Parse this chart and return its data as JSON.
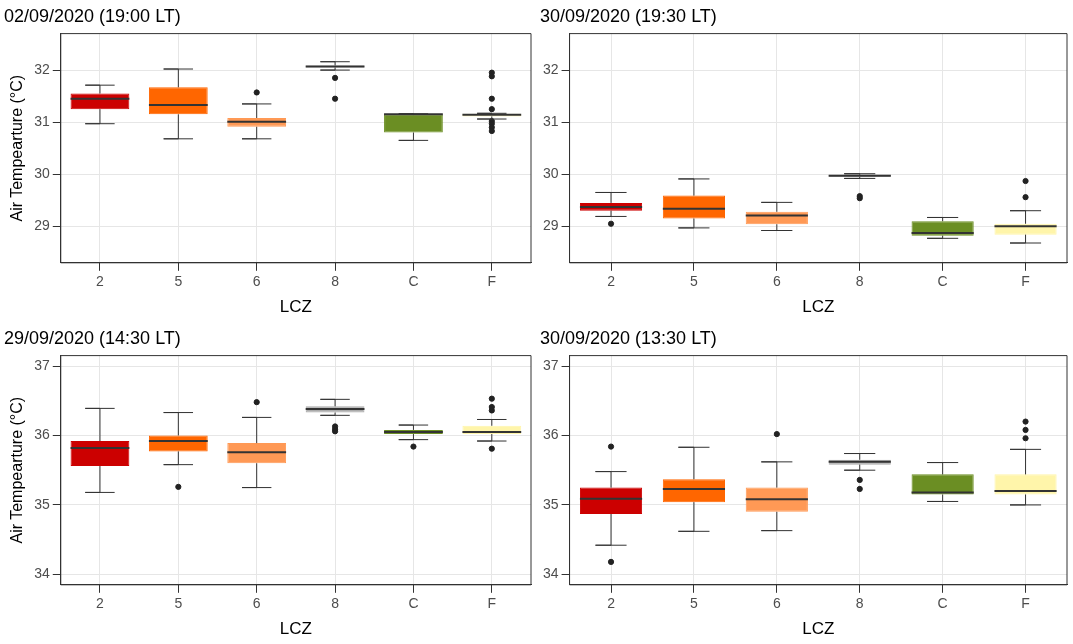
{
  "chart_data": [
    {
      "type": "box",
      "title": "02/09/2020 (19:00 LT)",
      "xlabel": "LCZ",
      "ylabel": "Air Tempearture (°C)",
      "categories": [
        "2",
        "5",
        "6",
        "8",
        "C",
        "F"
      ],
      "colors": [
        "#cc0000",
        "#ff6600",
        "#ff9955",
        "#aaaaaa",
        "#6b8e23",
        "#fff5aa"
      ],
      "ylim": [
        28.3,
        32.7
      ],
      "yticks": [
        29,
        30,
        31,
        32
      ],
      "grid": true,
      "boxes": [
        {
          "low": 30.97,
          "q1": 31.25,
          "median": 31.45,
          "q3": 31.55,
          "high": 31.71
        },
        {
          "low": 30.68,
          "q1": 31.15,
          "median": 31.33,
          "q3": 31.67,
          "high": 32.02
        },
        {
          "low": 30.68,
          "q1": 30.91,
          "median": 31.01,
          "q3": 31.08,
          "high": 31.35,
          "outliers": [
            31.57
          ]
        },
        {
          "low": 32.0,
          "q1": 32.05,
          "median": 32.07,
          "q3": 32.09,
          "high": 32.16,
          "outliers": [
            31.85,
            31.45
          ]
        },
        {
          "low": 30.65,
          "q1": 30.8,
          "median": 31.15,
          "q3": 31.15,
          "high": 31.16
        },
        {
          "low": 31.06,
          "q1": 31.11,
          "median": 31.14,
          "q3": 31.16,
          "high": 31.17,
          "outliers": [
            31.95,
            31.88,
            31.45,
            31.25,
            31.02,
            30.97,
            30.9,
            30.83
          ]
        }
      ]
    },
    {
      "type": "box",
      "title": "30/09/2020 (19:30 LT)",
      "xlabel": "LCZ",
      "categories": [
        "2",
        "5",
        "6",
        "8",
        "C",
        "F"
      ],
      "colors": [
        "#cc0000",
        "#ff6600",
        "#ff9955",
        "#aaaaaa",
        "#6b8e23",
        "#fff5aa"
      ],
      "ylim": [
        28.3,
        32.7
      ],
      "yticks": [
        29,
        30,
        31,
        32
      ],
      "grid": true,
      "boxes": [
        {
          "low": 29.19,
          "q1": 29.3,
          "median": 29.37,
          "q3": 29.45,
          "high": 29.65,
          "outliers": [
            29.05
          ]
        },
        {
          "low": 28.97,
          "q1": 29.15,
          "median": 29.34,
          "q3": 29.59,
          "high": 29.91
        },
        {
          "low": 28.92,
          "q1": 29.04,
          "median": 29.21,
          "q3": 29.28,
          "high": 29.46
        },
        {
          "low": 29.92,
          "q1": 29.95,
          "median": 29.97,
          "q3": 29.99,
          "high": 30.01,
          "outliers": [
            29.58,
            29.54
          ]
        },
        {
          "low": 28.77,
          "q1": 28.82,
          "median": 28.87,
          "q3": 29.1,
          "high": 29.17
        },
        {
          "low": 28.68,
          "q1": 28.84,
          "median": 29.0,
          "q3": 29.05,
          "high": 29.3,
          "outliers": [
            29.87,
            29.56
          ]
        }
      ]
    },
    {
      "type": "box",
      "title": "29/09/2020 (14:30 LT)",
      "xlabel": "LCZ",
      "ylabel": "Air Tempearture (°C)",
      "categories": [
        "2",
        "5",
        "6",
        "8",
        "C",
        "F"
      ],
      "colors": [
        "#cc0000",
        "#ff6600",
        "#ff9955",
        "#aaaaaa",
        "#6b8e23",
        "#fff5aa"
      ],
      "ylim": [
        33.85,
        37.15
      ],
      "yticks": [
        34,
        35,
        36,
        37
      ],
      "grid": true,
      "boxes": [
        {
          "low": 35.18,
          "q1": 35.56,
          "median": 35.82,
          "q3": 35.92,
          "high": 36.39
        },
        {
          "low": 35.58,
          "q1": 35.77,
          "median": 35.92,
          "q3": 36.0,
          "high": 36.33,
          "outliers": [
            35.26
          ]
        },
        {
          "low": 35.25,
          "q1": 35.6,
          "median": 35.76,
          "q3": 35.89,
          "high": 36.26,
          "outliers": [
            36.48
          ]
        },
        {
          "low": 36.29,
          "q1": 36.33,
          "median": 36.38,
          "q3": 36.42,
          "high": 36.52,
          "outliers": [
            36.13,
            36.09,
            36.06
          ]
        },
        {
          "low": 35.94,
          "q1": 36.02,
          "median": 36.05,
          "q3": 36.08,
          "high": 36.15,
          "outliers": [
            35.84
          ]
        },
        {
          "low": 35.92,
          "q1": 36.02,
          "median": 36.05,
          "q3": 36.14,
          "high": 36.23,
          "outliers": [
            36.53,
            36.41,
            36.36,
            35.81
          ]
        }
      ]
    },
    {
      "type": "box",
      "title": "30/09/2020 (13:30 LT)",
      "xlabel": "LCZ",
      "categories": [
        "2",
        "5",
        "6",
        "8",
        "C",
        "F"
      ],
      "colors": [
        "#cc0000",
        "#ff6600",
        "#ff9955",
        "#aaaaaa",
        "#6b8e23",
        "#fff5aa"
      ],
      "ylim": [
        33.85,
        37.15
      ],
      "yticks": [
        34,
        35,
        36,
        37
      ],
      "grid": true,
      "boxes": [
        {
          "low": 34.42,
          "q1": 34.87,
          "median": 35.09,
          "q3": 35.25,
          "high": 35.48,
          "outliers": [
            35.84,
            34.18
          ]
        },
        {
          "low": 34.62,
          "q1": 35.04,
          "median": 35.23,
          "q3": 35.37,
          "high": 35.83
        },
        {
          "low": 34.63,
          "q1": 34.9,
          "median": 35.08,
          "q3": 35.25,
          "high": 35.62,
          "outliers": [
            36.02
          ]
        },
        {
          "low": 35.5,
          "q1": 35.58,
          "median": 35.62,
          "q3": 35.65,
          "high": 35.74,
          "outliers": [
            35.36,
            35.23
          ]
        },
        {
          "low": 35.05,
          "q1": 35.15,
          "median": 35.18,
          "q3": 35.44,
          "high": 35.61
        },
        {
          "low": 35.0,
          "q1": 35.15,
          "median": 35.2,
          "q3": 35.44,
          "high": 35.8,
          "outliers": [
            36.2,
            36.08,
            35.96
          ]
        }
      ]
    }
  ]
}
